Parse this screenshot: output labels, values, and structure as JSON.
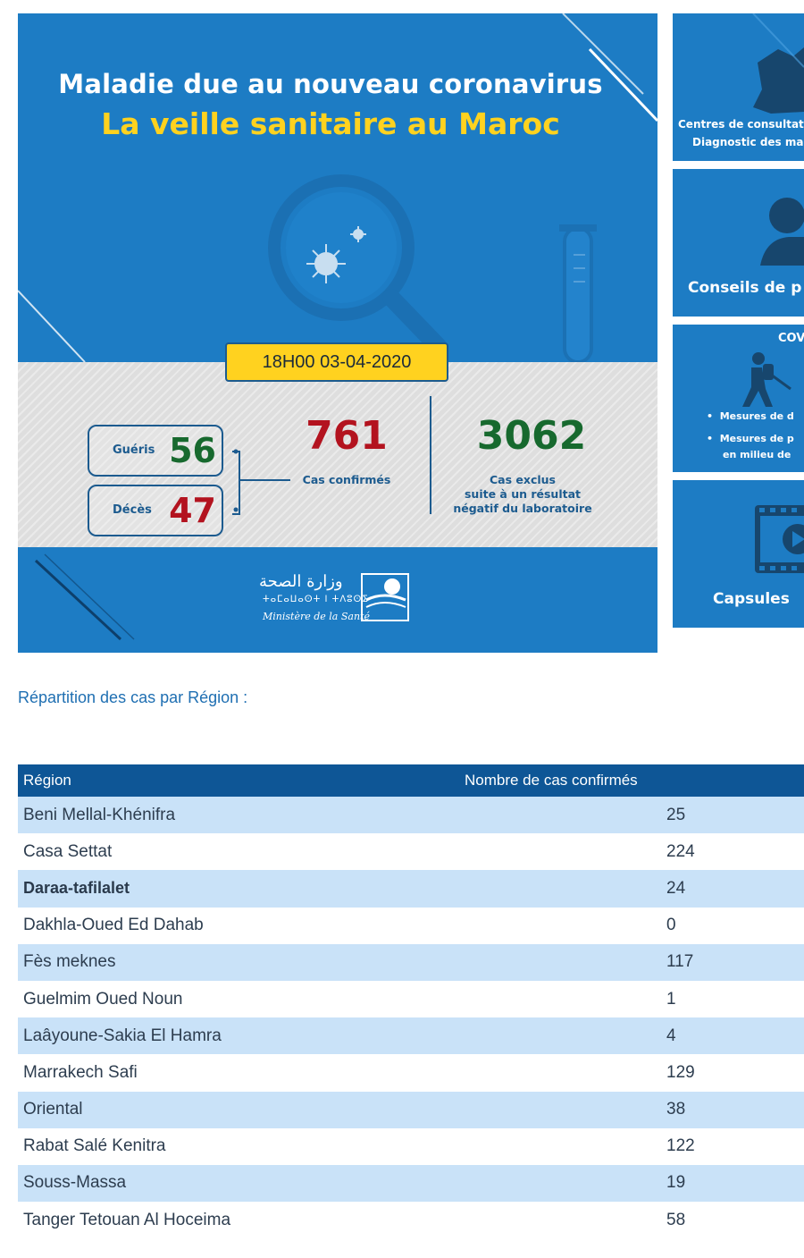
{
  "banner": {
    "title_line1": "Maladie due au nouveau coronavirus",
    "title_line2": "La veille sanitaire au Maroc",
    "date": "18H00  03-04-2020",
    "gueris_label": "Guéris",
    "gueris_value": "56",
    "deces_label": "Décès",
    "deces_value": "47",
    "confirmes_value": "761",
    "confirmes_label": "Cas confirmés",
    "exclus_value": "3062",
    "exclus_line1": "Cas exclus",
    "exclus_line2": "suite à un résultat",
    "exclus_line3": "négatif du laboratoire",
    "ministry_arabic": "وزارة الصحة",
    "ministry_tifinagh": "ⵜⴰⵎⴰⵡⴰⵙⵜ ⵏ ⵜⴷⵓⵙⵉ",
    "ministry_french": "Ministère de la Santé",
    "colors": {
      "background": "#1d7cc4",
      "accent_yellow": "#ffd21f",
      "green": "#17692e",
      "red": "#b3131f"
    }
  },
  "side_cards": [
    {
      "line1": "Centres de consultat",
      "line2": "Diagnostic des ma",
      "icon": "map-icon"
    },
    {
      "line1": "Conseils de p",
      "icon": "person-icon"
    },
    {
      "header": "COV",
      "bullet1": "Mesures de d",
      "bullet2a": "Mesures de p",
      "bullet2b": "en milieu de",
      "icon": "sprayer-icon"
    },
    {
      "line1": "Capsules",
      "icon": "video-icon"
    }
  ],
  "section_heading": "Répartition des cas par Région :",
  "table": {
    "headers": [
      "Région",
      "Nombre de cas confirmés"
    ],
    "rows": [
      {
        "region": "Beni Mellal-Khénifra",
        "cases": "25"
      },
      {
        "region": "Casa Settat",
        "cases": "224"
      },
      {
        "region": "Daraa-tafilalet",
        "cases": "24"
      },
      {
        "region": "Dakhla-Oued Ed Dahab",
        "cases": "0"
      },
      {
        "region": "Fès meknes",
        "cases": "117"
      },
      {
        "region": "Guelmim Oued Noun",
        "cases": "1"
      },
      {
        "region": "Laâyoune-Sakia El Hamra",
        "cases": "4"
      },
      {
        "region": "Marrakech Safi",
        "cases": "129"
      },
      {
        "region": "Oriental",
        "cases": "38"
      },
      {
        "region": "Rabat Salé Kenitra",
        "cases": "122"
      },
      {
        "region": "Souss-Massa",
        "cases": "19"
      },
      {
        "region": "Tanger Tetouan Al Hoceima",
        "cases": "58"
      }
    ]
  }
}
